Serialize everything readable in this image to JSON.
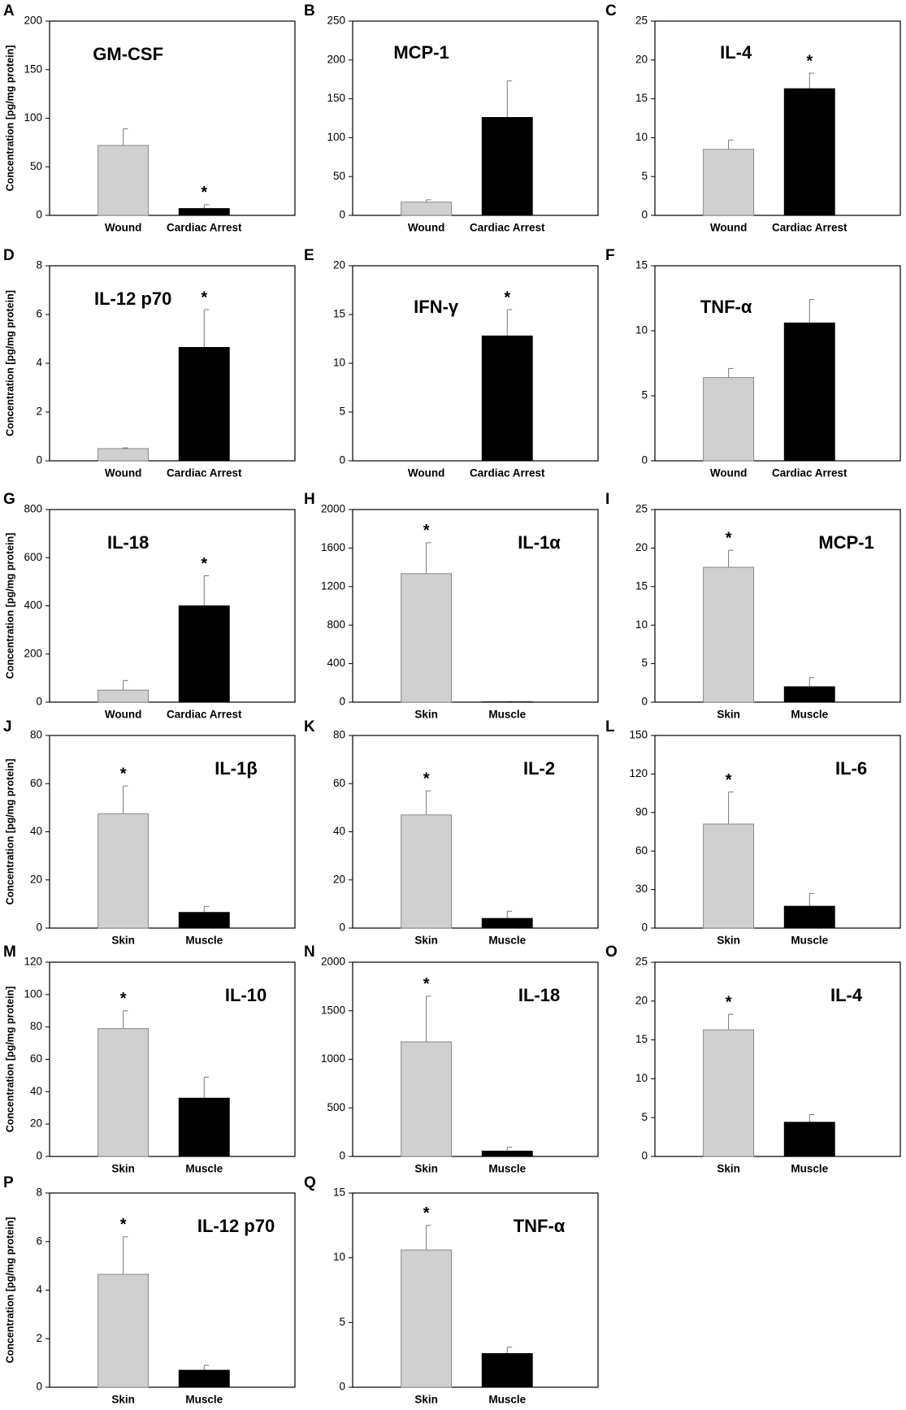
{
  "colors": {
    "skin_wound": "#d0d0d0",
    "muscle_arrest": "#000000",
    "frame": "#000000"
  },
  "chart_data": [
    {
      "panel": "A",
      "type": "bar",
      "title": "GM-CSF",
      "ylabel": "Concentration [pg/mg protein]",
      "categories": [
        "Wound",
        "Cardiac Arrest"
      ],
      "values": [
        72,
        7
      ],
      "errors": [
        17,
        4
      ],
      "ylim": [
        0,
        200
      ],
      "yticks": [
        0,
        50,
        100,
        150,
        200
      ],
      "significant": [
        false,
        true
      ]
    },
    {
      "panel": "B",
      "type": "bar",
      "title": "MCP-1",
      "ylabel": "",
      "categories": [
        "Wound",
        "Cardiac Arrest"
      ],
      "values": [
        17,
        126
      ],
      "errors": [
        3,
        47
      ],
      "ylim": [
        0,
        250
      ],
      "yticks": [
        0,
        50,
        100,
        150,
        200,
        250
      ],
      "significant": [
        false,
        false
      ]
    },
    {
      "panel": "C",
      "type": "bar",
      "title": "IL-4",
      "ylabel": "",
      "categories": [
        "Wound",
        "Cardiac Arrest"
      ],
      "values": [
        8.5,
        16.3
      ],
      "errors": [
        1.2,
        2
      ],
      "ylim": [
        0,
        25
      ],
      "yticks": [
        0,
        5,
        10,
        15,
        20,
        25
      ],
      "significant": [
        false,
        true
      ]
    },
    {
      "panel": "D",
      "type": "bar",
      "title": "IL-12 p70",
      "ylabel": "Concentration [pg/mg protein]",
      "categories": [
        "Wound",
        "Cardiac Arrest"
      ],
      "values": [
        0.5,
        4.65
      ],
      "errors": [
        0.03,
        1.55
      ],
      "ylim": [
        0,
        8
      ],
      "yticks": [
        0,
        2,
        4,
        6,
        8
      ],
      "significant": [
        false,
        true
      ]
    },
    {
      "panel": "E",
      "type": "bar",
      "title": "IFN-γ",
      "ylabel": "",
      "categories": [
        "Wound",
        "Cardiac Arrest"
      ],
      "values": [
        0,
        12.8
      ],
      "errors": [
        0,
        2.7
      ],
      "ylim": [
        0,
        20
      ],
      "yticks": [
        0,
        5,
        10,
        15,
        20
      ],
      "significant": [
        false,
        true
      ]
    },
    {
      "panel": "F",
      "type": "bar",
      "title": "TNF-α",
      "ylabel": "",
      "categories": [
        "Wound",
        "Cardiac Arrest"
      ],
      "values": [
        6.4,
        10.6
      ],
      "errors": [
        0.7,
        1.8
      ],
      "ylim": [
        0,
        15
      ],
      "yticks": [
        0,
        5,
        10,
        15
      ],
      "significant": [
        false,
        false
      ]
    },
    {
      "panel": "G",
      "type": "bar",
      "title": "IL-18",
      "ylabel": "Concentration [pg/mg protein]",
      "categories": [
        "Wound",
        "Cardiac Arrest"
      ],
      "values": [
        50,
        400
      ],
      "errors": [
        40,
        125
      ],
      "ylim": [
        0,
        800
      ],
      "yticks": [
        0,
        200,
        400,
        600,
        800
      ],
      "significant": [
        false,
        true
      ]
    },
    {
      "panel": "H",
      "type": "bar",
      "title": "IL-1α",
      "ylabel": "",
      "categories": [
        "Skin",
        "Muscle"
      ],
      "values": [
        1335,
        3
      ],
      "errors": [
        320,
        2
      ],
      "ylim": [
        0,
        2000
      ],
      "yticks": [
        0,
        400,
        800,
        1200,
        1600,
        2000
      ],
      "significant": [
        true,
        false
      ]
    },
    {
      "panel": "I",
      "type": "bar",
      "title": "MCP-1",
      "ylabel": "",
      "categories": [
        "Skin",
        "Muscle"
      ],
      "values": [
        17.5,
        2
      ],
      "errors": [
        2.2,
        1.2
      ],
      "ylim": [
        0,
        25
      ],
      "yticks": [
        0,
        5,
        10,
        15,
        20,
        25
      ],
      "significant": [
        true,
        false
      ]
    },
    {
      "panel": "J",
      "type": "bar",
      "title": "IL-1β",
      "ylabel": "Concentration [pg/mg protein]",
      "categories": [
        "Skin",
        "Muscle"
      ],
      "values": [
        47.5,
        6.5
      ],
      "errors": [
        11.5,
        2.5
      ],
      "ylim": [
        0,
        80
      ],
      "yticks": [
        0,
        20,
        40,
        60,
        80
      ],
      "significant": [
        true,
        false
      ]
    },
    {
      "panel": "K",
      "type": "bar",
      "title": "IL-2",
      "ylabel": "",
      "categories": [
        "Skin",
        "Muscle"
      ],
      "values": [
        47,
        4
      ],
      "errors": [
        10,
        3
      ],
      "ylim": [
        0,
        80
      ],
      "yticks": [
        0,
        20,
        40,
        60,
        80
      ],
      "significant": [
        true,
        false
      ]
    },
    {
      "panel": "L",
      "type": "bar",
      "title": "IL-6",
      "ylabel": "",
      "categories": [
        "Skin",
        "Muscle"
      ],
      "values": [
        81,
        17
      ],
      "errors": [
        25,
        10
      ],
      "ylim": [
        0,
        150
      ],
      "yticks": [
        0,
        30,
        60,
        90,
        120,
        150
      ],
      "significant": [
        true,
        false
      ]
    },
    {
      "panel": "M",
      "type": "bar",
      "title": "IL-10",
      "ylabel": "Concentration [pg/mg protein]",
      "categories": [
        "Skin",
        "Muscle"
      ],
      "values": [
        79,
        36
      ],
      "errors": [
        11,
        13
      ],
      "ylim": [
        0,
        120
      ],
      "yticks": [
        0,
        20,
        40,
        60,
        80,
        100,
        120
      ],
      "significant": [
        true,
        false
      ]
    },
    {
      "panel": "N",
      "type": "bar",
      "title": "IL-18",
      "ylabel": "",
      "categories": [
        "Skin",
        "Muscle"
      ],
      "values": [
        1180,
        55
      ],
      "errors": [
        470,
        40
      ],
      "ylim": [
        0,
        2000
      ],
      "yticks": [
        0,
        500,
        1000,
        1500,
        2000
      ],
      "significant": [
        true,
        false
      ]
    },
    {
      "panel": "O",
      "type": "bar",
      "title": "IL-4",
      "ylabel": "",
      "categories": [
        "Skin",
        "Muscle"
      ],
      "values": [
        16.3,
        4.4
      ],
      "errors": [
        2,
        1
      ],
      "ylim": [
        0,
        25
      ],
      "yticks": [
        0,
        5,
        10,
        15,
        20,
        25
      ],
      "significant": [
        true,
        false
      ]
    },
    {
      "panel": "P",
      "type": "bar",
      "title": "IL-12 p70",
      "ylabel": "Concentration [pg/mg protein]",
      "categories": [
        "Skin",
        "Muscle"
      ],
      "values": [
        4.65,
        0.7
      ],
      "errors": [
        1.55,
        0.2
      ],
      "ylim": [
        0,
        8
      ],
      "yticks": [
        0,
        2,
        4,
        6,
        8
      ],
      "significant": [
        true,
        false
      ]
    },
    {
      "panel": "Q",
      "type": "bar",
      "title": "TNF-α",
      "ylabel": "",
      "categories": [
        "Skin",
        "Muscle"
      ],
      "values": [
        10.6,
        2.6
      ],
      "errors": [
        1.9,
        0.5
      ],
      "ylim": [
        0,
        15
      ],
      "yticks": [
        0,
        5,
        10,
        15
      ],
      "significant": [
        true,
        false
      ]
    }
  ]
}
